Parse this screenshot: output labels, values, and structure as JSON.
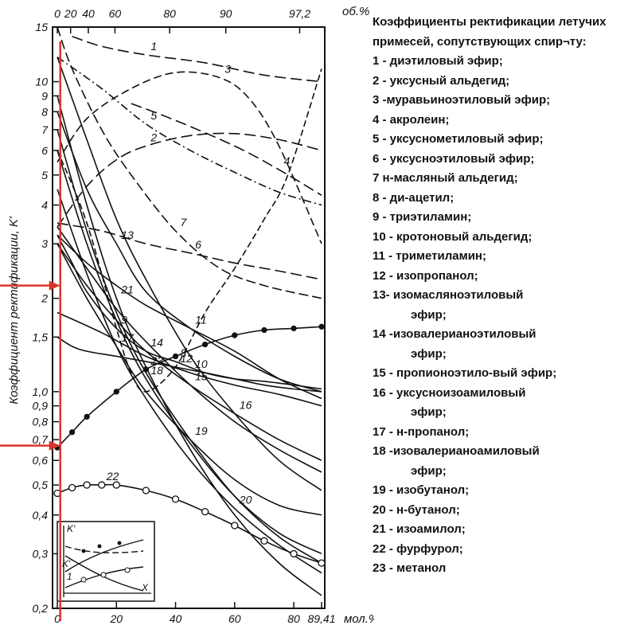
{
  "chart_data": {
    "type": "line",
    "title": "Коэффициенты ректификации летучих примесей, сопутствующих спирту:",
    "ylabel": "Коэффициент ректификации, K'",
    "xlabel_bottom": "мол.%",
    "xlabel_top": "об.%",
    "y_scale": "log",
    "ylim": [
      0.2,
      15
    ],
    "xlim_bottom": [
      0,
      89.41
    ],
    "y_ticks": [
      "0,2",
      "0,3",
      "0,4",
      "0,5",
      "0,6",
      "0,7",
      "0,8",
      "0,9",
      "1,0",
      "1,5",
      "2",
      "3",
      "4",
      "5",
      "6",
      "7",
      "8",
      "9",
      "10",
      "15"
    ],
    "x_ticks_bottom": [
      "0",
      "20",
      "40",
      "60",
      "80",
      "89,41"
    ],
    "x_ticks_top": [
      "0",
      "20",
      "40",
      "60",
      "80",
      "90",
      "97,2"
    ],
    "x_unit_bottom": "мол.%",
    "x_unit_top": "об.%",
    "inset_labels": [
      "K'",
      "K'",
      "1",
      "X"
    ],
    "grid": false,
    "series": [
      {
        "label": "1",
        "x": [
          5,
          15,
          30,
          50,
          70,
          89.41
        ],
        "y": [
          14,
          13,
          12.2,
          11.5,
          10.5,
          10
        ]
      },
      {
        "label": "2",
        "x": [
          0,
          10,
          20,
          30,
          45,
          60,
          75,
          89.41
        ],
        "y": [
          3.4,
          4.6,
          5.6,
          6.2,
          6.7,
          6.8,
          6.5,
          6.0
        ]
      },
      {
        "label": "3",
        "x": [
          0,
          10,
          25,
          40,
          55,
          65,
          75,
          89.41
        ],
        "y": [
          5.5,
          7.6,
          9.5,
          10.7,
          10.3,
          8.8,
          6.2,
          3.0
        ]
      },
      {
        "label": "4",
        "x": [
          25,
          40,
          60,
          75,
          89.41
        ],
        "y": [
          8.5,
          7.5,
          6.2,
          5.2,
          4.3
        ]
      },
      {
        "label": "5",
        "x": [
          0,
          15,
          30,
          45,
          60,
          75,
          89.41
        ],
        "y": [
          12,
          9.5,
          7.3,
          6.0,
          5.1,
          4.4,
          4.0
        ]
      },
      {
        "label": "6",
        "x": [
          0,
          15,
          30,
          45,
          60,
          75,
          89.41
        ],
        "y": [
          3.5,
          3.3,
          3.0,
          2.8,
          2.6,
          2.45,
          2.3
        ]
      },
      {
        "label": "7",
        "x": [
          0,
          5,
          15,
          25,
          40,
          55,
          70,
          89.41
        ],
        "y": [
          15,
          11,
          7.0,
          5.0,
          3.3,
          2.5,
          2.2,
          2.0
        ]
      },
      {
        "label": "8",
        "x": [
          0,
          5,
          10,
          20,
          30,
          40,
          50,
          60,
          70,
          80,
          89.41
        ],
        "y": [
          3.2,
          2.6,
          2.1,
          1.6,
          1.35,
          1.25,
          1.15,
          1.1,
          1.08,
          1.05,
          1.02
        ]
      },
      {
        "label": "9",
        "x": [
          0,
          10,
          20,
          25,
          30,
          40,
          50,
          60,
          70,
          78,
          89.41
        ],
        "y": [
          6.0,
          3.5,
          1.6,
          1.15,
          1.0,
          1.2,
          1.8,
          2.5,
          3.6,
          5.0,
          11
        ]
      },
      {
        "label": "10",
        "x": [
          0,
          15,
          30,
          45,
          60,
          75,
          89.41
        ],
        "y": [
          1.8,
          1.55,
          1.3,
          1.15,
          1.05,
          0.98,
          0.9
        ]
      },
      {
        "label": "11",
        "x": [
          0,
          10,
          20,
          30,
          45,
          60,
          75,
          89.41
        ],
        "y": [
          3.2,
          2.6,
          2.2,
          1.9,
          1.6,
          1.35,
          1.1,
          0.95
        ]
      },
      {
        "label": "12",
        "x": [
          0,
          5,
          10,
          20,
          30,
          40,
          50,
          60,
          70,
          80,
          89.41
        ],
        "y": [
          1.5,
          1.4,
          1.35,
          1.3,
          1.25,
          1.2,
          1.15,
          1.1,
          1.05,
          1.02,
          1.0
        ]
      },
      {
        "label": "13",
        "x": [
          0,
          10,
          20,
          30,
          45,
          60,
          75,
          89.41
        ],
        "y": [
          8.0,
          4.5,
          3.0,
          2.1,
          1.6,
          1.3,
          1.1,
          1.0
        ]
      },
      {
        "label": "14",
        "x": [
          0,
          10,
          20,
          30,
          45,
          60,
          75,
          89.41
        ],
        "y": [
          3.0,
          2.2,
          1.7,
          1.35,
          1.05,
          0.85,
          0.7,
          0.6
        ]
      },
      {
        "label": "15",
        "x": [
          0,
          10,
          20,
          30,
          45,
          60,
          75,
          89.41
        ],
        "y": [
          3.4,
          2.5,
          1.85,
          1.45,
          1.05,
          0.8,
          0.65,
          0.55
        ]
      },
      {
        "label": "16",
        "x": [
          0,
          10,
          20,
          30,
          45,
          60,
          75,
          89.41
        ],
        "y": [
          12,
          6.5,
          3.6,
          2.3,
          1.3,
          0.85,
          0.6,
          0.48
        ]
      },
      {
        "label": "17",
        "x": [
          0,
          10,
          20,
          30,
          45,
          60,
          75,
          89.41
        ],
        "y": [
          3.0,
          2.0,
          1.4,
          1.0,
          0.7,
          0.52,
          0.43,
          0.4
        ]
      },
      {
        "label": "18",
        "x": [
          0,
          10,
          20,
          30,
          45,
          60,
          75,
          89.41
        ],
        "y": [
          6.0,
          3.0,
          1.7,
          1.1,
          0.68,
          0.46,
          0.35,
          0.3
        ]
      },
      {
        "label": "19",
        "x": [
          0,
          10,
          20,
          30,
          45,
          60,
          75,
          89.41
        ],
        "y": [
          7.0,
          3.3,
          1.8,
          1.15,
          0.7,
          0.46,
          0.34,
          0.28
        ]
      },
      {
        "label": "20",
        "x": [
          0,
          10,
          20,
          30,
          45,
          60,
          75,
          89.41
        ],
        "y": [
          4.5,
          2.4,
          1.4,
          0.95,
          0.6,
          0.42,
          0.32,
          0.26
        ]
      },
      {
        "label": "21",
        "x": [
          0,
          10,
          20,
          30,
          45,
          60,
          75,
          89.41
        ],
        "y": [
          9.0,
          4.0,
          2.0,
          1.2,
          0.65,
          0.4,
          0.28,
          0.22
        ]
      },
      {
        "label": "22",
        "x": [
          0,
          5,
          10,
          15,
          20,
          30,
          40,
          50,
          60,
          70,
          80,
          89.41
        ],
        "y": [
          0.47,
          0.49,
          0.5,
          0.5,
          0.5,
          0.48,
          0.45,
          0.41,
          0.37,
          0.33,
          0.3,
          0.28
        ]
      },
      {
        "label": "23",
        "x": [
          0,
          5,
          10,
          20,
          30,
          40,
          50,
          60,
          70,
          80,
          89.41
        ],
        "y": [
          0.66,
          0.74,
          0.83,
          1.0,
          1.18,
          1.3,
          1.42,
          1.52,
          1.58,
          1.6,
          1.62
        ]
      }
    ],
    "markers": {
      "23": "filled-dot",
      "22": "open-circle"
    },
    "red_marks": {
      "vertical_line_mol_percent": 1,
      "arrow_levels": [
        2.2,
        0.67
      ]
    }
  },
  "legend": {
    "title": "Коэффициенты ректификации летучих примесей, сопутствующих спир¬ту:",
    "items": [
      {
        "text": "1 - диэтиловый эфир;"
      },
      {
        "text": " 2 - уксусный альдегид;"
      },
      {
        "text": "3 -муравьиноэтиловый эфир;"
      },
      {
        "text": "4 - акролеин;"
      },
      {
        "text": "5 - уксуснометиловый эфир;"
      },
      {
        "text": "6 - уксусноэтиловый эфир;"
      },
      {
        "text": "7 н-масляный альдегид;"
      },
      {
        "text": "8 - ди-ацетил;"
      },
      {
        "text": "9 - триэтиламин;"
      },
      {
        "text": "10 - кротоновый альдегид;"
      },
      {
        "text": "11 - триметиламин;"
      },
      {
        "text": "12 - изопропанол;"
      },
      {
        "text": "13- изомасляноэтиловый",
        "cont": "эфир;"
      },
      {
        "text": "14 -изовалерианоэтиловый",
        "cont": "эфир;"
      },
      {
        "text": "15 - пропионоэтило-вый эфир;"
      },
      {
        "text": "16 - уксусноизоамиловый",
        "cont": "эфир;"
      },
      {
        "text": "17 - н-пропанол;"
      },
      {
        "text": "18 -изовалерианоамиловый",
        "cont": "эфир;"
      },
      {
        "text": "19 - изобутанол;"
      },
      {
        "text": "20 - н-бутанол;"
      },
      {
        "text": "21 - изоамилол;"
      },
      {
        "text": "22 - фурфурол;"
      },
      {
        "text": "23 - метанол"
      }
    ]
  },
  "colors": {
    "ink": "#111111",
    "marker_red": "#d9342b",
    "background": "#ffffff"
  }
}
